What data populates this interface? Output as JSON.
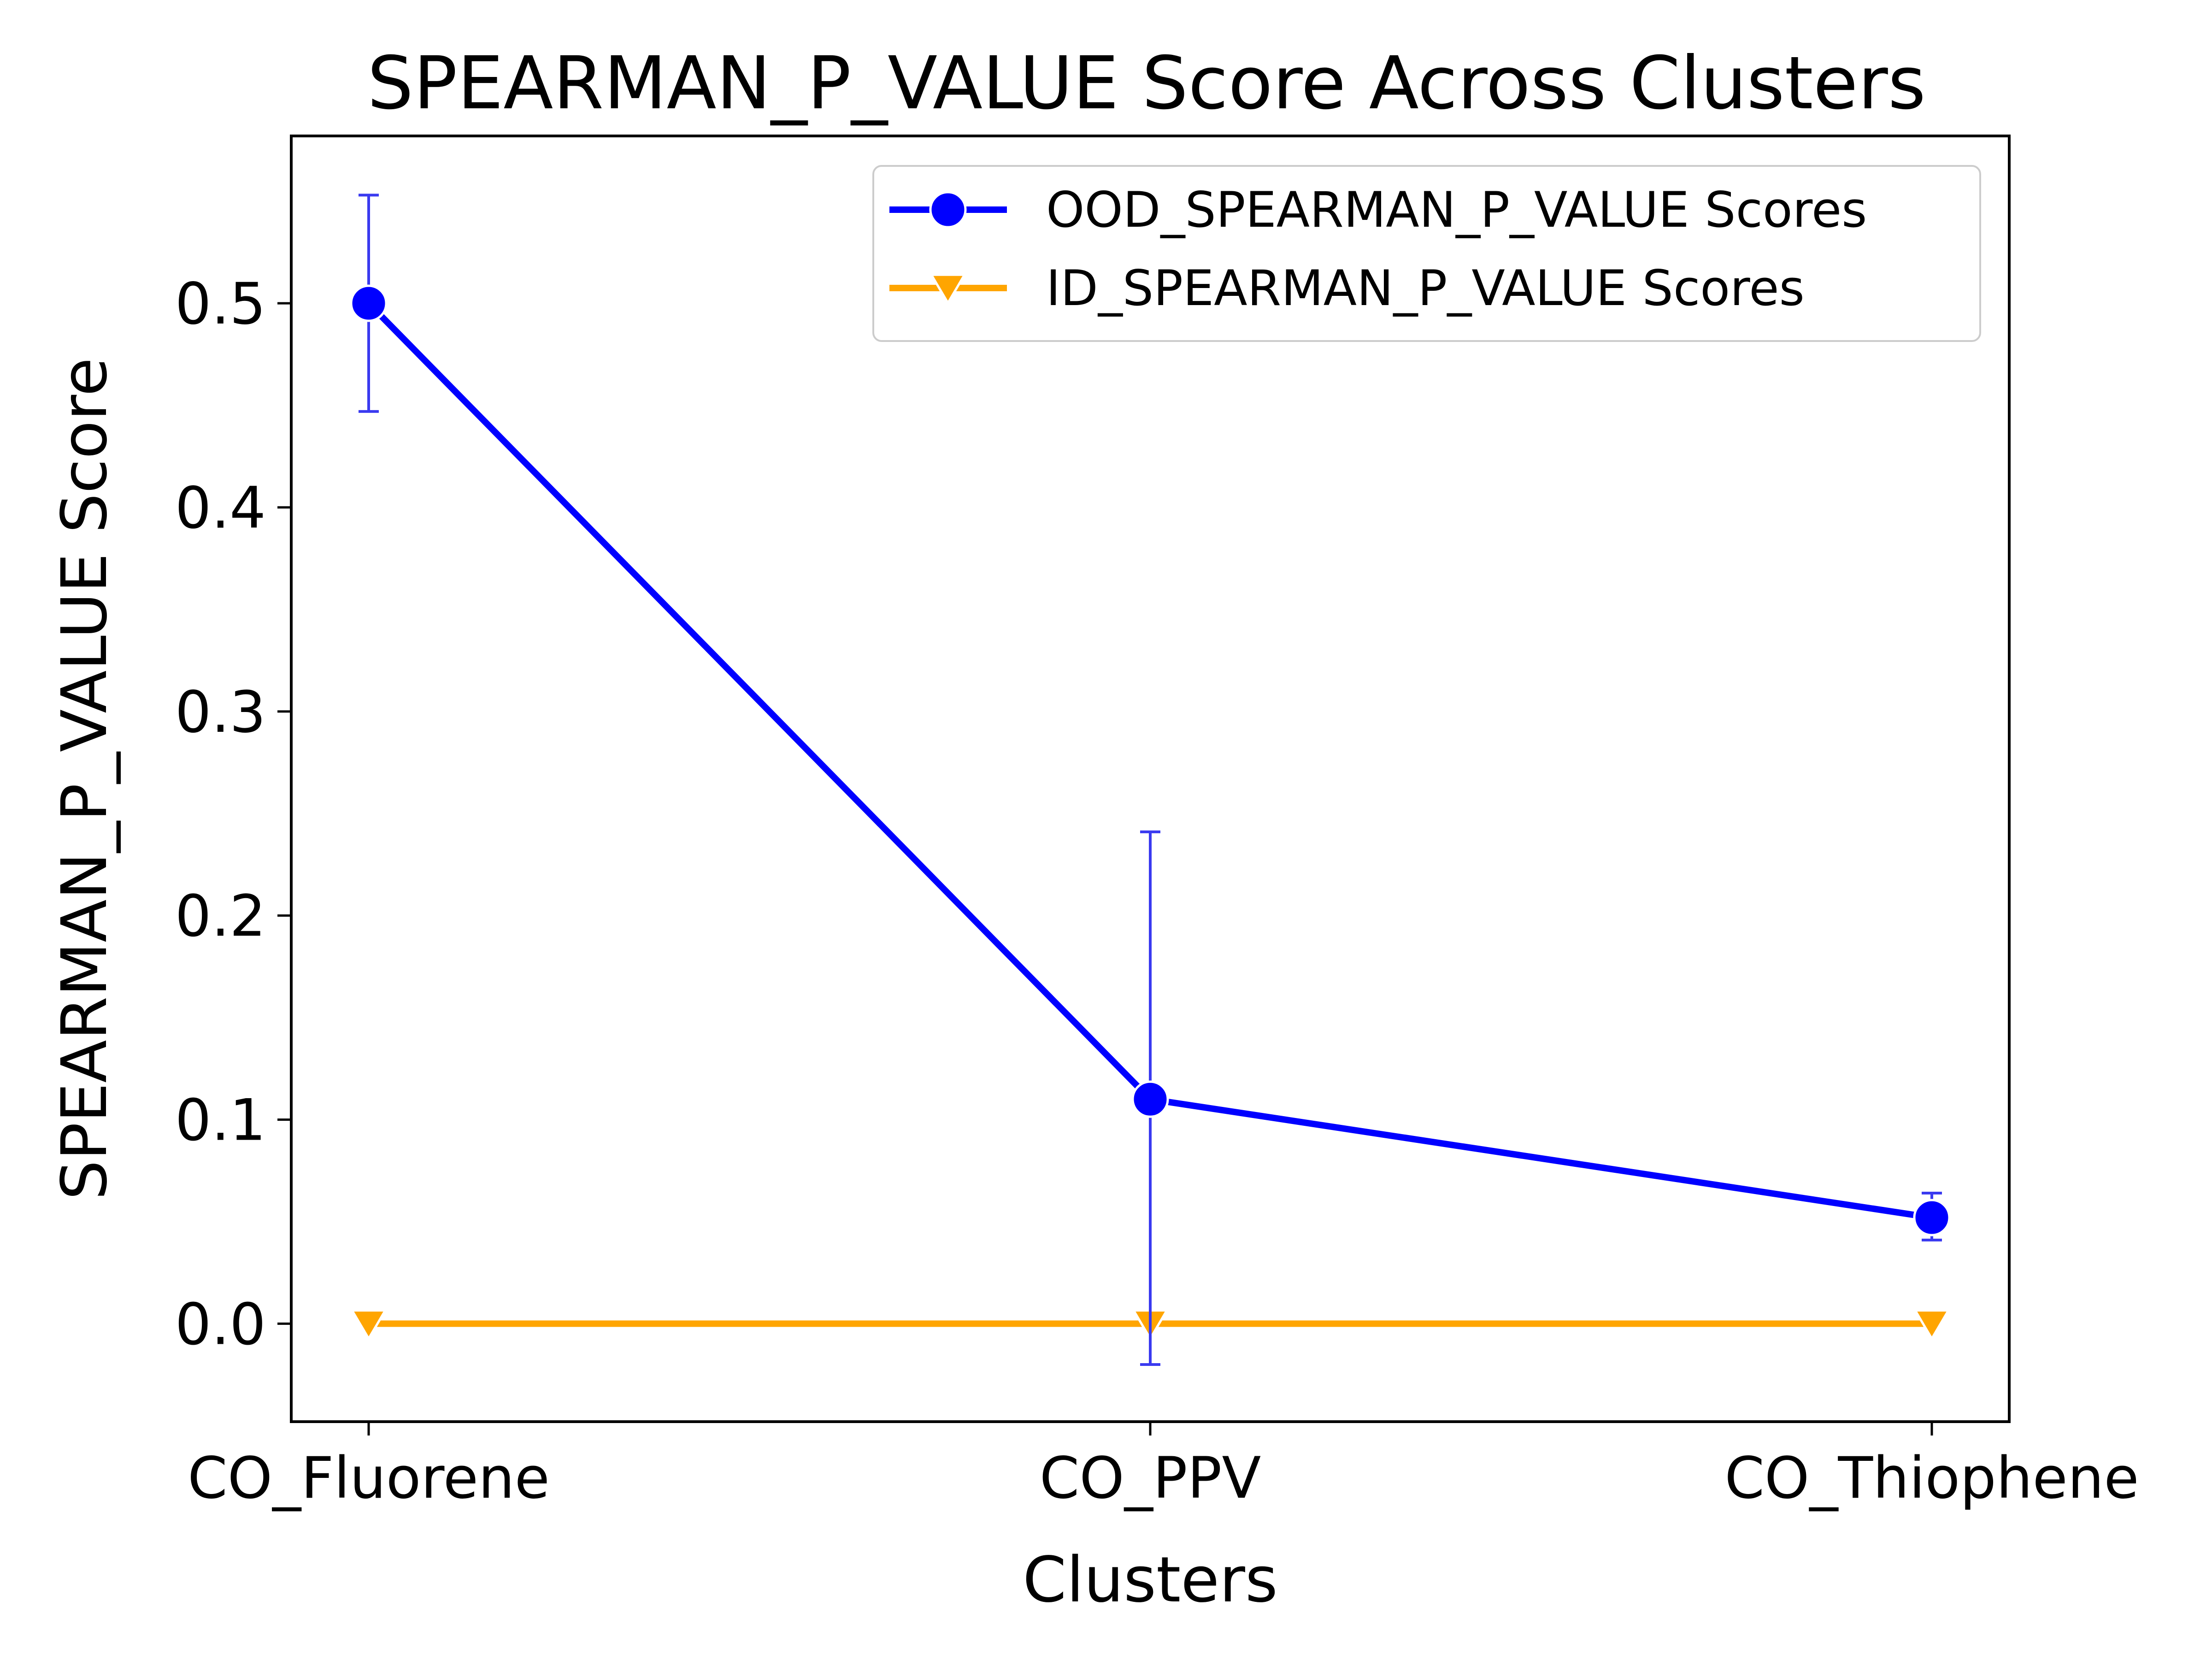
{
  "chart_data": {
    "type": "line",
    "title": "SPEARMAN_P_VALUE Score Across Clusters",
    "xlabel": "Clusters",
    "ylabel": "SPEARMAN_P_VALUE Score",
    "categories": [
      "CO_Fluorene",
      "CO_PPV",
      "CO_Thiophene"
    ],
    "ylim": [
      -0.048,
      0.582
    ],
    "yticks": [
      0.0,
      0.1,
      0.2,
      0.3,
      0.4,
      0.5
    ],
    "ytick_labels": [
      "0.0",
      "0.1",
      "0.2",
      "0.3",
      "0.4",
      "0.5"
    ],
    "grid": false,
    "legend_position": "top-right",
    "series": [
      {
        "name": "OOD_SPEARMAN_P_VALUE Scores",
        "values": [
          0.5,
          0.11,
          0.052
        ],
        "error_low": [
          0.447,
          -0.02,
          0.041
        ],
        "error_high": [
          0.553,
          0.241,
          0.064
        ],
        "color": "#0000ff",
        "marker": "circle"
      },
      {
        "name": "ID_SPEARMAN_P_VALUE Scores",
        "values": [
          0.0,
          0.0,
          0.0
        ],
        "color": "#ffa500",
        "marker": "triangle-down"
      }
    ]
  }
}
